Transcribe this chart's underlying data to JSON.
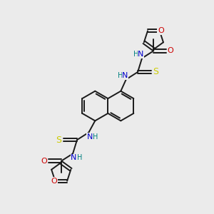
{
  "background_color": "#ebebeb",
  "bond_color": "#1a1a1a",
  "N_color": "#0000cc",
  "O_color": "#cc0000",
  "S_color": "#cccc00",
  "H_color": "#008080",
  "figsize": [
    3.0,
    3.0
  ],
  "dpi": 100,
  "xlim": [
    0,
    10
  ],
  "ylim": [
    0,
    10
  ]
}
